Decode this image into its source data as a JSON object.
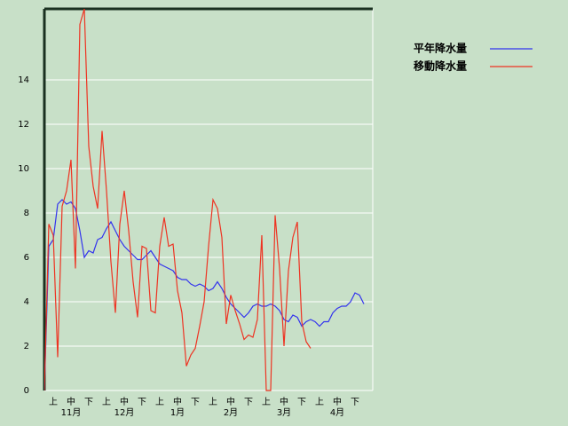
{
  "chart_data": {
    "type": "line",
    "categories": [
      null,
      null,
      "上",
      null,
      null,
      null,
      "中",
      null,
      null,
      null,
      "下",
      null,
      null,
      null,
      "上",
      null,
      null,
      null,
      "中",
      null,
      null,
      null,
      "下",
      null,
      null,
      null,
      "上",
      null,
      null,
      null,
      "中",
      null,
      null,
      null,
      "下",
      null,
      null,
      null,
      "上",
      null,
      null,
      null,
      "中",
      null,
      null,
      null,
      "下",
      null,
      null,
      null,
      "上",
      null,
      null,
      null,
      "中",
      null,
      null,
      null,
      "下",
      null,
      null,
      null,
      "上",
      null,
      null,
      null,
      "中",
      null,
      null,
      null,
      "下",
      null,
      null
    ],
    "months": [
      "11月",
      "12月",
      "1月",
      "2月",
      "3月",
      "4月"
    ],
    "series": [
      {
        "name": "平年降水量",
        "color": "#3333ee",
        "values": [
          0,
          6.5,
          6.8,
          8.4,
          8.6,
          8.4,
          8.5,
          8.2,
          7.2,
          6.0,
          6.3,
          6.2,
          6.8,
          6.9,
          7.3,
          7.6,
          7.2,
          6.8,
          6.5,
          6.3,
          6.1,
          5.9,
          5.9,
          6.1,
          6.3,
          6.0,
          5.7,
          5.6,
          5.5,
          5.4,
          5.1,
          5.0,
          5.0,
          4.8,
          4.7,
          4.8,
          4.7,
          4.5,
          4.6,
          4.9,
          4.6,
          4.2,
          3.9,
          3.7,
          3.5,
          3.3,
          3.5,
          3.8,
          3.9,
          3.8,
          3.8,
          3.9,
          3.8,
          3.6,
          3.2,
          3.1,
          3.4,
          3.3,
          2.9,
          3.1,
          3.2,
          3.1,
          2.9,
          3.1,
          3.1,
          3.5,
          3.7,
          3.8,
          3.8,
          4.0,
          4.4,
          4.3,
          3.9
        ]
      },
      {
        "name": "移動降水量",
        "color": "#ee3322",
        "values": [
          0,
          7.5,
          7.0,
          1.5,
          8.3,
          9.0,
          10.4,
          5.5,
          16.5,
          17.2,
          11.0,
          9.2,
          8.2,
          11.7,
          9.0,
          5.8,
          3.5,
          7.5,
          9.0,
          7.2,
          4.9,
          3.3,
          6.5,
          6.4,
          3.6,
          3.5,
          6.5,
          7.8,
          6.5,
          6.6,
          4.5,
          3.5,
          1.1,
          1.6,
          1.9,
          2.9,
          4.0,
          6.5,
          8.6,
          8.2,
          6.9,
          3.0,
          4.3,
          3.6,
          3.0,
          2.3,
          2.5,
          2.4,
          3.2,
          7.0,
          0.0,
          0.0,
          7.9,
          5.5,
          2.0,
          5.4,
          6.9,
          7.6,
          3.1,
          2.2,
          1.9,
          null,
          null,
          null,
          null,
          null,
          null,
          null,
          null,
          null,
          null,
          null,
          null
        ]
      }
    ],
    "ylim": [
      0,
      17.2
    ],
    "yticks": [
      0,
      2,
      4,
      6,
      8,
      10,
      12,
      14
    ],
    "grid": true
  }
}
